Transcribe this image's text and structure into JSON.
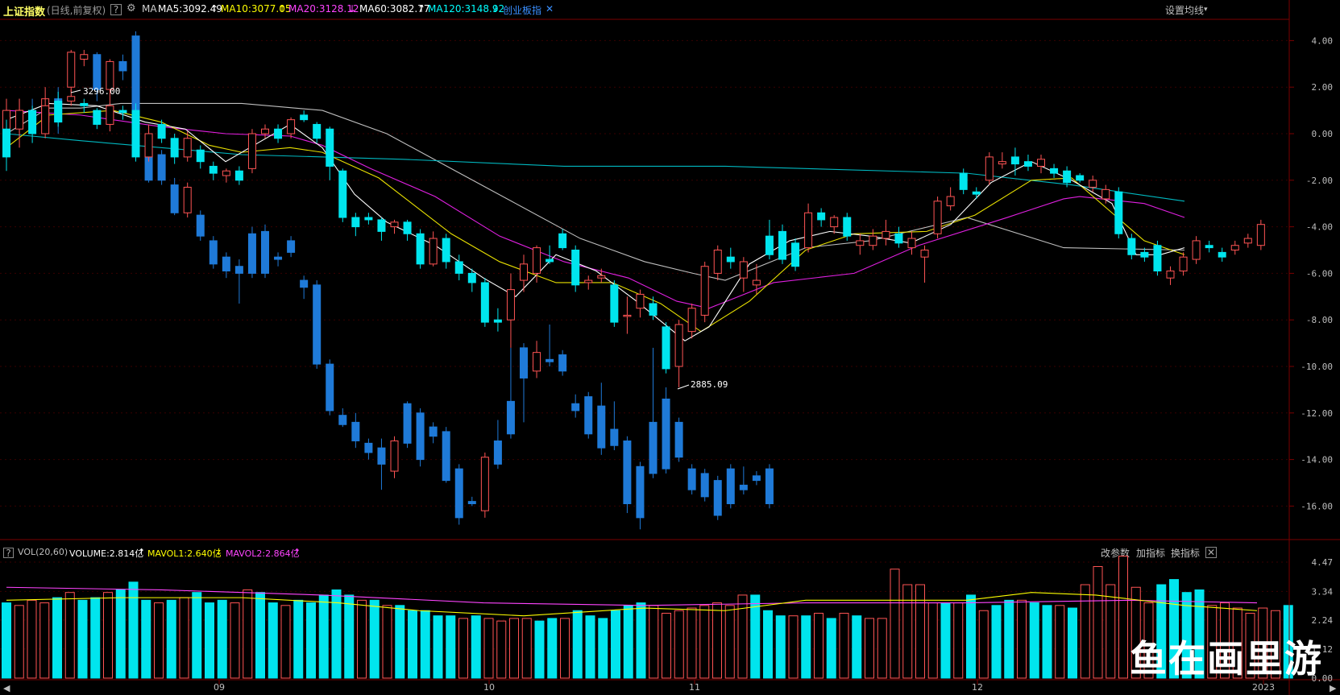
{
  "header": {
    "title": "上证指数",
    "mode": "(日线,前复权)",
    "help": "?",
    "ma_label": "MA",
    "ma5": "MA5:3092.49",
    "ma10": "MA10:3077.05",
    "ma20": "MA20:3128.12",
    "ma60": "MA60:3082.77",
    "ma120": "MA120:3148.92",
    "compare": "创业板指",
    "ma_settings": "设置均线"
  },
  "colors": {
    "up": "#ff5454",
    "down_main": "#00e5ee",
    "down_compare": "#1f7ad8",
    "ma5": "#ffffff",
    "ma10": "#e8e000",
    "ma20": "#e020e0",
    "ma60": "#bfbfbf",
    "ma120": "#00b8c0",
    "grid": "#3a0000",
    "ma5_label": "#ffffff",
    "ma10_label": "#ffff00",
    "ma20_label": "#ff44ff",
    "ma60_label": "#ffffff",
    "ma120_label": "#00ffff",
    "compare_label": "#3a8fff"
  },
  "y_axis": [
    "4.00",
    "2.00",
    "0.00",
    "-2.00",
    "-4.00",
    "-6.00",
    "-8.00",
    "-10.00",
    "-12.00",
    "-14.00",
    "-16.00"
  ],
  "annotations": {
    "high": "3296.00",
    "low": "2885.09"
  },
  "volume": {
    "help": "?",
    "name": "VOL(20,60)",
    "volume": "VOLUME:2.814亿",
    "mavol1": "MAVOL1:2.640亿",
    "mavol2": "MAVOL2:2.864亿",
    "buttons": [
      "改参数",
      "加指标",
      "换指标"
    ],
    "close": "✕",
    "y_axis": [
      "4.47",
      "3.34",
      "2.24",
      "1.12",
      "0.00"
    ]
  },
  "x_axis": [
    "09",
    "10",
    "11",
    "12",
    "2023"
  ],
  "watermark": "鱼在画里游",
  "chart_data": {
    "type": "candlestick",
    "y_unit": "percent",
    "ylim": [
      -17.5,
      4.5
    ],
    "main_index": [
      {
        "o": -1.0,
        "c": 0.2,
        "h": 0.6,
        "l": -1.6,
        "d": true
      },
      {
        "o": 0.2,
        "c": 1.0,
        "h": 1.5,
        "l": -0.6,
        "u": true
      },
      {
        "o": 1.0,
        "c": 0.0,
        "h": 1.2,
        "l": -0.4,
        "d": true
      },
      {
        "o": 0.0,
        "c": 1.2,
        "h": 1.5,
        "l": -0.2,
        "u": true
      },
      {
        "o": 1.4,
        "c": 0.5,
        "h": 1.8,
        "l": 0.3,
        "d": true
      },
      {
        "o": 1.6,
        "c": 1.4,
        "h": 1.9,
        "l": 1.2,
        "u": true
      },
      {
        "o": 1.3,
        "c": 1.2,
        "h": 1.5,
        "l": 0.9,
        "d": true
      },
      {
        "o": 1.0,
        "c": 0.4,
        "h": 1.1,
        "l": 0.2,
        "d": true
      },
      {
        "o": 0.4,
        "c": 1.2,
        "h": 1.3,
        "l": 0.1,
        "u": true
      },
      {
        "o": 1.0,
        "c": 0.9,
        "h": 1.2,
        "l": 0.6,
        "d": true
      },
      {
        "o": 1.0,
        "c": -1.0,
        "h": 1.3,
        "l": -1.2,
        "d": true
      },
      {
        "o": -1.0,
        "c": 0.0,
        "h": 0.4,
        "l": -1.2,
        "u": true
      },
      {
        "o": 0.4,
        "c": -0.2,
        "h": 0.6,
        "l": -0.4,
        "d": true
      },
      {
        "o": -0.2,
        "c": -1.0,
        "h": 0.0,
        "l": -1.3,
        "d": true
      },
      {
        "o": -1.0,
        "c": -0.2,
        "h": 0.1,
        "l": -1.2,
        "u": true
      },
      {
        "o": -0.7,
        "c": -1.2,
        "h": -0.5,
        "l": -1.5,
        "d": true
      },
      {
        "o": -1.4,
        "c": -1.7,
        "h": -1.2,
        "l": -2.0,
        "d": true
      },
      {
        "o": -1.8,
        "c": -1.6,
        "h": -1.5,
        "l": -2.1,
        "u": true
      },
      {
        "o": -1.6,
        "c": -2.0,
        "h": -1.4,
        "l": -2.2,
        "d": true
      },
      {
        "o": -1.5,
        "c": 0.0,
        "h": 0.2,
        "l": -1.7,
        "u": true
      },
      {
        "o": 0.0,
        "c": 0.2,
        "h": 0.4,
        "l": -0.2,
        "u": true
      },
      {
        "o": 0.2,
        "c": -0.2,
        "h": 0.4,
        "l": -0.4,
        "d": true
      },
      {
        "o": 0.0,
        "c": 0.6,
        "h": 0.7,
        "l": -0.2,
        "u": true
      },
      {
        "o": 0.6,
        "c": 0.8,
        "h": 1.0,
        "l": 0.5,
        "d": true
      },
      {
        "o": 0.4,
        "c": -0.2,
        "h": 0.5,
        "l": -0.4,
        "d": true
      },
      {
        "o": 0.2,
        "c": -1.4,
        "h": 0.3,
        "l": -2.0,
        "d": true
      },
      {
        "o": -1.6,
        "c": -3.6,
        "h": -1.5,
        "l": -3.8,
        "d": true
      },
      {
        "o": -3.6,
        "c": -4.0,
        "h": -3.4,
        "l": -4.4,
        "d": true
      },
      {
        "o": -3.6,
        "c": -3.7,
        "h": -3.4,
        "l": -3.9,
        "d": true
      },
      {
        "o": -3.7,
        "c": -4.2,
        "h": -3.6,
        "l": -4.6,
        "d": true
      },
      {
        "o": -4.0,
        "c": -3.8,
        "h": -3.7,
        "l": -4.3,
        "u": true
      },
      {
        "o": -3.8,
        "c": -4.3,
        "h": -3.7,
        "l": -4.6,
        "d": true
      },
      {
        "o": -4.3,
        "c": -5.6,
        "h": -4.1,
        "l": -5.8,
        "d": true
      },
      {
        "o": -5.6,
        "c": -4.5,
        "h": -4.2,
        "l": -5.7,
        "u": true
      },
      {
        "o": -4.5,
        "c": -5.5,
        "h": -4.3,
        "l": -5.8,
        "d": true
      },
      {
        "o": -5.5,
        "c": -6.0,
        "h": -5.2,
        "l": -6.3,
        "d": true
      },
      {
        "o": -6.0,
        "c": -6.4,
        "h": -5.8,
        "l": -6.8,
        "d": true
      },
      {
        "o": -6.4,
        "c": -8.1,
        "h": -6.2,
        "l": -8.3,
        "d": true
      },
      {
        "o": -8.1,
        "c": -8.0,
        "h": -7.5,
        "l": -8.5,
        "d": true
      },
      {
        "o": -8.0,
        "c": -6.7,
        "h": -6.0,
        "l": -9.2,
        "u": true
      },
      {
        "o": -6.3,
        "c": -5.6,
        "h": -5.2,
        "l": -6.8,
        "u": true
      },
      {
        "o": -6.0,
        "c": -4.9,
        "h": -4.8,
        "l": -6.4,
        "u": true
      },
      {
        "o": -5.4,
        "c": -5.5,
        "h": -4.8,
        "l": -5.6,
        "d": true
      },
      {
        "o": -4.9,
        "c": -4.3,
        "h": -4.1,
        "l": -5.0,
        "d": true
      },
      {
        "o": -5.0,
        "c": -6.5,
        "h": -4.8,
        "l": -6.8,
        "d": true
      },
      {
        "o": -6.3,
        "c": -6.4,
        "h": -6.1,
        "l": -6.7,
        "u": true
      },
      {
        "o": -6.1,
        "c": -6.2,
        "h": -5.8,
        "l": -6.4,
        "u": true
      },
      {
        "o": -6.5,
        "c": -8.1,
        "h": -6.3,
        "l": -8.3,
        "d": true
      },
      {
        "o": -7.8,
        "c": -7.8,
        "h": -7.0,
        "l": -8.6,
        "u": true
      },
      {
        "o": -7.5,
        "c": -6.9,
        "h": -6.7,
        "l": -7.9,
        "u": true
      },
      {
        "o": -7.3,
        "c": -7.8,
        "h": -7.0,
        "l": -8.0,
        "d": true
      },
      {
        "o": -8.3,
        "c": -10.1,
        "h": -8.1,
        "l": -10.3,
        "d": true
      },
      {
        "o": -10.0,
        "c": -8.2,
        "h": -8.0,
        "l": -10.9,
        "u": true
      },
      {
        "o": -8.5,
        "c": -7.5,
        "h": -7.3,
        "l": -8.8,
        "u": true
      },
      {
        "o": -7.8,
        "c": -5.7,
        "h": -5.5,
        "l": -8.1,
        "u": true
      },
      {
        "o": -6.0,
        "c": -5.0,
        "h": -4.8,
        "l": -6.3,
        "u": true
      },
      {
        "o": -5.3,
        "c": -5.5,
        "h": -4.9,
        "l": -5.8,
        "d": true
      },
      {
        "o": -5.5,
        "c": -6.2,
        "h": -5.3,
        "l": -6.8,
        "u": true
      },
      {
        "o": -6.3,
        "c": -6.5,
        "h": -5.6,
        "l": -6.9,
        "u": true
      },
      {
        "o": -4.4,
        "c": -5.2,
        "h": -3.7,
        "l": -5.4,
        "d": true
      },
      {
        "o": -4.2,
        "c": -5.4,
        "h": -3.9,
        "l": -5.6,
        "d": true
      },
      {
        "o": -4.7,
        "c": -5.7,
        "h": -4.5,
        "l": -5.9,
        "d": true
      },
      {
        "o": -3.4,
        "c": -4.9,
        "h": -3.0,
        "l": -5.1,
        "u": true
      },
      {
        "o": -3.7,
        "c": -3.4,
        "h": -3.2,
        "l": -4.0,
        "d": true
      },
      {
        "o": -4.0,
        "c": -3.6,
        "h": -3.5,
        "l": -4.3,
        "u": true
      },
      {
        "o": -3.6,
        "c": -4.4,
        "h": -3.4,
        "l": -4.6,
        "d": true
      },
      {
        "o": -4.8,
        "c": -4.6,
        "h": -4.3,
        "l": -5.2,
        "u": true
      },
      {
        "o": -4.4,
        "c": -4.8,
        "h": -4.1,
        "l": -5.0,
        "u": true
      },
      {
        "o": -4.5,
        "c": -4.2,
        "h": -3.7,
        "l": -4.8,
        "u": true
      },
      {
        "o": -4.3,
        "c": -4.7,
        "h": -4.0,
        "l": -4.9,
        "d": true
      },
      {
        "o": -4.5,
        "c": -4.9,
        "h": -4.2,
        "l": -5.2,
        "u": true
      },
      {
        "o": -5.0,
        "c": -5.3,
        "h": -4.8,
        "l": -6.4,
        "u": true
      },
      {
        "o": -4.3,
        "c": -2.9,
        "h": -2.7,
        "l": -4.5,
        "u": true
      },
      {
        "o": -3.1,
        "c": -2.7,
        "h": -2.3,
        "l": -3.3,
        "u": true
      },
      {
        "o": -1.7,
        "c": -2.4,
        "h": -1.5,
        "l": -2.6,
        "d": true
      },
      {
        "o": -2.5,
        "c": -2.6,
        "h": -2.3,
        "l": -2.8,
        "d": true
      },
      {
        "o": -2.0,
        "c": -1.0,
        "h": -0.8,
        "l": -2.2,
        "u": true
      },
      {
        "o": -1.2,
        "c": -1.3,
        "h": -0.8,
        "l": -1.5,
        "u": true
      },
      {
        "o": -1.3,
        "c": -1.0,
        "h": -0.6,
        "l": -1.8,
        "d": true
      },
      {
        "o": -1.2,
        "c": -1.4,
        "h": -0.9,
        "l": -1.6,
        "d": true
      },
      {
        "o": -1.4,
        "c": -1.1,
        "h": -0.9,
        "l": -1.7,
        "u": true
      },
      {
        "o": -1.5,
        "c": -1.7,
        "h": -1.3,
        "l": -1.9,
        "d": true
      },
      {
        "o": -1.6,
        "c": -2.1,
        "h": -1.4,
        "l": -2.3,
        "d": true
      },
      {
        "o": -1.8,
        "c": -2.0,
        "h": -1.7,
        "l": -2.1,
        "d": true
      },
      {
        "o": -2.0,
        "c": -2.3,
        "h": -1.8,
        "l": -2.5,
        "u": true
      },
      {
        "o": -2.4,
        "c": -2.8,
        "h": -2.2,
        "l": -3.0,
        "u": true
      },
      {
        "o": -2.5,
        "c": -4.3,
        "h": -2.3,
        "l": -4.5,
        "d": true
      },
      {
        "o": -4.5,
        "c": -5.2,
        "h": -4.3,
        "l": -5.4,
        "d": true
      },
      {
        "o": -5.1,
        "c": -5.3,
        "h": -4.9,
        "l": -5.5,
        "d": true
      },
      {
        "o": -4.8,
        "c": -5.9,
        "h": -4.6,
        "l": -6.1,
        "d": true
      },
      {
        "o": -6.2,
        "c": -5.9,
        "h": -5.7,
        "l": -6.5,
        "u": true
      },
      {
        "o": -5.9,
        "c": -5.3,
        "h": -5.1,
        "l": -6.1,
        "u": true
      },
      {
        "o": -5.4,
        "c": -4.6,
        "h": -4.4,
        "l": -5.6,
        "u": true
      },
      {
        "o": -4.9,
        "c": -4.8,
        "h": -4.6,
        "l": -5.1,
        "d": true
      },
      {
        "o": -5.1,
        "c": -5.3,
        "h": -4.9,
        "l": -5.5,
        "d": true
      },
      {
        "o": -5.0,
        "c": -4.8,
        "h": -4.6,
        "l": -5.2,
        "u": true
      },
      {
        "o": -4.7,
        "c": -4.5,
        "h": -4.3,
        "l": -4.9,
        "u": true
      },
      {
        "o": -4.8,
        "c": -3.9,
        "h": -3.7,
        "l": -5.0,
        "u": true
      }
    ],
    "compare_index": [
      {
        "o": 0.0,
        "c": 1.0,
        "h": 1.5,
        "l": -0.5,
        "u": true
      },
      {
        "o": 0.5,
        "c": 1.0,
        "h": 1.5,
        "l": 0.0,
        "u": true
      },
      {
        "o": 1.0,
        "c": 0.5,
        "h": 1.5,
        "l": 0.0,
        "d": true
      },
      {
        "o": 0.5,
        "c": 1.5,
        "h": 2.0,
        "l": 0.0,
        "u": true
      },
      {
        "o": 1.5,
        "c": 0.5,
        "h": 2.0,
        "l": 0.0,
        "d": true
      },
      {
        "o": 2.0,
        "c": 3.5,
        "h": 3.6,
        "l": 1.8,
        "u": true
      },
      {
        "o": 3.4,
        "c": 3.2,
        "h": 3.6,
        "l": 2.9,
        "u": true
      },
      {
        "o": 3.4,
        "c": 1.9,
        "h": 3.5,
        "l": 1.4,
        "d": true
      },
      {
        "o": 1.9,
        "c": 3.1,
        "h": 3.2,
        "l": 1.2,
        "u": true
      },
      {
        "o": 3.1,
        "c": 2.7,
        "h": 3.4,
        "l": 2.3,
        "d": true
      },
      {
        "o": 4.2,
        "c": -0.7,
        "h": 4.4,
        "l": -0.9,
        "d": true
      },
      {
        "o": -0.7,
        "c": -2.0,
        "h": -0.5,
        "l": -2.1,
        "d": true
      },
      {
        "o": -0.9,
        "c": -2.0,
        "h": -0.7,
        "l": -2.2,
        "d": true
      },
      {
        "o": -2.2,
        "c": -3.4,
        "h": -1.9,
        "l": -3.5,
        "d": true
      },
      {
        "o": -3.4,
        "c": -2.3,
        "h": -2.1,
        "l": -3.6,
        "u": true
      },
      {
        "o": -3.5,
        "c": -4.4,
        "h": -3.3,
        "l": -4.6,
        "d": true
      },
      {
        "o": -4.6,
        "c": -5.6,
        "h": -4.4,
        "l": -5.8,
        "d": true
      },
      {
        "o": -5.3,
        "c": -5.9,
        "h": -5.1,
        "l": -6.2,
        "d": true
      },
      {
        "o": -5.7,
        "c": -6.0,
        "h": -5.4,
        "l": -7.3,
        "d": true
      },
      {
        "o": -4.3,
        "c": -6.0,
        "h": -4.0,
        "l": -6.2,
        "d": true
      },
      {
        "o": -4.2,
        "c": -6.0,
        "h": -3.9,
        "l": -6.2,
        "d": true
      },
      {
        "o": -5.3,
        "c": -5.4,
        "h": -5.1,
        "l": -5.7,
        "d": true
      },
      {
        "o": -4.6,
        "c": -5.1,
        "h": -4.4,
        "l": -5.3,
        "d": true
      },
      {
        "o": -6.3,
        "c": -6.6,
        "h": -6.1,
        "l": -7.1,
        "d": true
      },
      {
        "o": -6.5,
        "c": -9.9,
        "h": -6.3,
        "l": -10.1,
        "d": true
      },
      {
        "o": -9.9,
        "c": -11.9,
        "h": -9.7,
        "l": -12.1,
        "d": true
      },
      {
        "o": -12.1,
        "c": -12.5,
        "h": -11.8,
        "l": -12.6,
        "d": true
      },
      {
        "o": -12.4,
        "c": -13.2,
        "h": -12.0,
        "l": -13.5,
        "d": true
      },
      {
        "o": -13.3,
        "c": -13.7,
        "h": -13.1,
        "l": -14.0,
        "d": true
      },
      {
        "o": -13.5,
        "c": -14.2,
        "h": -13.1,
        "l": -15.3,
        "d": true
      },
      {
        "o": -14.5,
        "c": -13.2,
        "h": -13.0,
        "l": -14.8,
        "u": true
      },
      {
        "o": -11.6,
        "c": -13.3,
        "h": -11.5,
        "l": -13.5,
        "d": true
      },
      {
        "o": -12.0,
        "c": -14.0,
        "h": -11.8,
        "l": -14.3,
        "d": true
      },
      {
        "o": -12.6,
        "c": -13.0,
        "h": -12.4,
        "l": -13.3,
        "d": true
      },
      {
        "o": -12.8,
        "c": -14.9,
        "h": -12.6,
        "l": -15.0,
        "d": true
      },
      {
        "o": -14.4,
        "c": -16.5,
        "h": -14.2,
        "l": -16.8,
        "d": true
      },
      {
        "o": -15.8,
        "c": -15.9,
        "h": -15.6,
        "l": -16.0,
        "d": true
      },
      {
        "o": -13.9,
        "c": -16.2,
        "h": -13.7,
        "l": -16.5,
        "u": true
      },
      {
        "o": -13.2,
        "c": -14.2,
        "h": -12.3,
        "l": -14.4,
        "d": true
      },
      {
        "o": -11.5,
        "c": -12.9,
        "h": -9.2,
        "l": -13.1,
        "d": true
      },
      {
        "o": -10.5,
        "c": -9.2,
        "h": -9.0,
        "l": -12.4,
        "d": true
      },
      {
        "o": -9.4,
        "c": -10.2,
        "h": -8.9,
        "l": -10.5,
        "u": true
      },
      {
        "o": -9.7,
        "c": -9.8,
        "h": -8.2,
        "l": -10.0,
        "d": true
      },
      {
        "o": -9.5,
        "c": -10.2,
        "h": -9.3,
        "l": -10.4,
        "d": true
      },
      {
        "o": -11.6,
        "c": -11.9,
        "h": -11.2,
        "l": -12.2,
        "d": true
      },
      {
        "o": -11.3,
        "c": -12.9,
        "h": -11.1,
        "l": -13.1,
        "d": true
      },
      {
        "o": -11.7,
        "c": -13.5,
        "h": -10.7,
        "l": -13.8,
        "d": true
      },
      {
        "o": -12.7,
        "c": -13.4,
        "h": -11.5,
        "l": -13.6,
        "d": true
      },
      {
        "o": -13.2,
        "c": -15.9,
        "h": -13.0,
        "l": -16.3,
        "d": true
      },
      {
        "o": -14.3,
        "c": -16.5,
        "h": -14.1,
        "l": -17.0,
        "d": true
      },
      {
        "o": -12.4,
        "c": -14.6,
        "h": -9.2,
        "l": -14.8,
        "d": true
      },
      {
        "o": -11.4,
        "c": -14.4,
        "h": -10.9,
        "l": -14.6,
        "d": true
      },
      {
        "o": -12.4,
        "c": -13.9,
        "h": -12.2,
        "l": -14.1,
        "d": true
      },
      {
        "o": -14.4,
        "c": -15.3,
        "h": -14.2,
        "l": -15.5,
        "d": true
      },
      {
        "o": -14.6,
        "c": -15.6,
        "h": -14.4,
        "l": -15.8,
        "d": true
      },
      {
        "o": -14.9,
        "c": -16.4,
        "h": -14.7,
        "l": -16.6,
        "d": true
      },
      {
        "o": -14.4,
        "c": -15.9,
        "h": -14.2,
        "l": -16.1,
        "d": true
      },
      {
        "o": -15.1,
        "c": -15.3,
        "h": -14.3,
        "l": -15.5,
        "d": true
      },
      {
        "o": -14.7,
        "c": -14.9,
        "h": -14.5,
        "l": -15.1,
        "d": true
      },
      {
        "o": -14.4,
        "c": -15.9,
        "h": -14.2,
        "l": -16.1,
        "d": true
      }
    ]
  }
}
